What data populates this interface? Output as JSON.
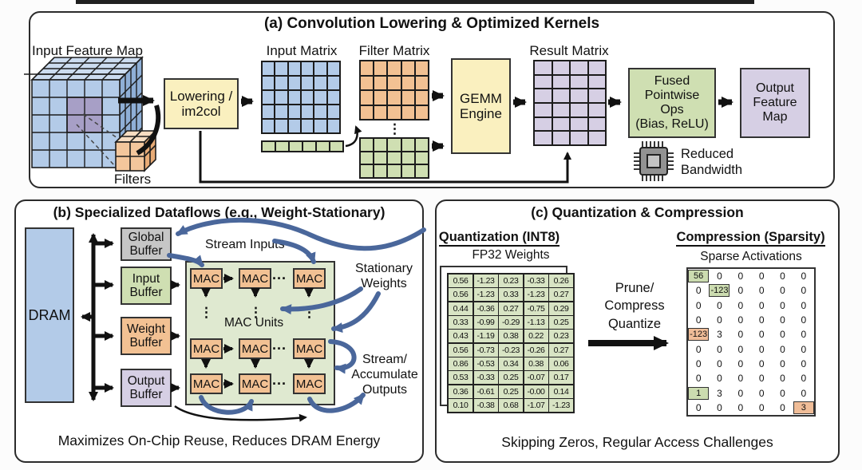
{
  "figure": {
    "colors": {
      "blue": "#b3cbe8",
      "green": "#cfdfb2",
      "orange": "#f2c193",
      "purple": "#d6cfe4",
      "yellow": "#faf0bf",
      "gray": "#c6c6c6",
      "arrow_blue": "#4a679b",
      "table_green": "#d8e4c4",
      "highlight_green": "#ccdcb0",
      "highlight_orange": "#f0bd98"
    },
    "panel_a": {
      "title": "(a) Convolution Lowering & Optimized Kernels",
      "input_feature_map": "Input Feature Map",
      "filters": "Filters",
      "lowering": "Lowering /\nim2col",
      "input_matrix": "Input Matrix",
      "filter_matrix": "Filter Matrix",
      "gemm": "GEMM\nEngine",
      "result_matrix": "Result Matrix",
      "fused_ops": "Fused\nPointwise\nOps\n(Bias, ReLU)",
      "output_feature_map": "Output\nFeature\nMap",
      "reduced_bandwidth": "Reduced\nBandwidth",
      "v_ellipsis": "⋮",
      "grids": {
        "input_matrix": {
          "cols": 6,
          "rows": 5,
          "fill": "#b3cbe8"
        },
        "input_row": {
          "cols": 6,
          "rows": 1,
          "fill": "#cfdfb2"
        },
        "filter_matrix": {
          "cols": 5,
          "rows": 4,
          "fill": "#f2c193"
        },
        "filter_matrix_green": {
          "cols": 5,
          "rows": 3,
          "fill": "#cfdfb2"
        },
        "result_matrix": {
          "cols": 4,
          "rows": 6,
          "fill": "#d6cfe4"
        }
      }
    },
    "panel_b": {
      "title": "(b) Specialized Dataflows (e.g., Weight-Stationary)",
      "dram": "DRAM",
      "buffers": [
        {
          "label": "Global\nBuffer",
          "color": "#c6c6c6"
        },
        {
          "label": "Input\nBuffer",
          "color": "#cfdfb2"
        },
        {
          "label": "Weight\nBuffer",
          "color": "#f2c193"
        },
        {
          "label": "Output\nBuffer",
          "color": "#d6cfe4"
        }
      ],
      "mac": "MAC",
      "mac_units": "MAC Units",
      "stream_inputs": "Stream Inputs",
      "stationary_weights": "Stationary\nWeights",
      "stream_accumulate": "Stream/\nAccumulate\nOutputs",
      "h_ellipsis": "···",
      "v_ellipsis": "⋮",
      "caption": "Maximizes On-Chip Reuse, Reduces DRAM Energy"
    },
    "panel_c": {
      "title": "(c) Quantization & Compression",
      "quant_heading": "Quantization (INT8)",
      "fp32_label": "FP32 Weights",
      "fp32_weights": [
        [
          "0.56",
          "-1.23",
          "0.23",
          "-0.33",
          "0.26"
        ],
        [
          "0.56",
          "-1.23",
          "0.33",
          "-1.23",
          "0.27"
        ],
        [
          "0.44",
          "-0.36",
          "0.27",
          "-0.75",
          "0.29"
        ],
        [
          "0.33",
          "-0.99",
          "-0.29",
          "-1.13",
          "0.25"
        ],
        [
          "0.43",
          "-1.19",
          "0.38",
          "0.22",
          "0.23"
        ],
        [
          "0.56",
          "-0.73",
          "-0.23",
          "-0.26",
          "0.27"
        ],
        [
          "0.86",
          "-0.53",
          "0.34",
          "0.38",
          "0.06"
        ],
        [
          "0.53",
          "-0.33",
          "0.25",
          "-0.07",
          "0.17"
        ],
        [
          "0.36",
          "-0.61",
          "0.25",
          "-0.00",
          "0.14"
        ],
        [
          "0.10",
          "-0.38",
          "0.68",
          "-1.07",
          "-1.23"
        ]
      ],
      "prune_text": "Prune/\nCompress\nQuantize",
      "comp_heading": "Compression (Sparsity)",
      "sparse_label": "Sparse Activations",
      "sparse_matrix": [
        [
          "56",
          "0",
          "0",
          "0",
          "0",
          "0"
        ],
        [
          "0",
          "-123",
          "0",
          "0",
          "0",
          "0"
        ],
        [
          "0",
          "0",
          "0",
          "0",
          "0",
          "0"
        ],
        [
          "0",
          "0",
          "0",
          "0",
          "0",
          "0"
        ],
        [
          "-123",
          "3",
          "0",
          "0",
          "0",
          "0"
        ],
        [
          "0",
          "0",
          "0",
          "0",
          "0",
          "0"
        ],
        [
          "0",
          "0",
          "0",
          "0",
          "0",
          "0"
        ],
        [
          "0",
          "0",
          "0",
          "0",
          "0",
          "0"
        ],
        [
          "1",
          "3",
          "0",
          "0",
          "0",
          "0"
        ],
        [
          "0",
          "0",
          "0",
          "0",
          "0",
          "3"
        ]
      ],
      "sparse_highlights": [
        {
          "row": 0,
          "col": 0,
          "color": "green"
        },
        {
          "row": 1,
          "col": 1,
          "color": "green"
        },
        {
          "row": 4,
          "col": 0,
          "color": "orange"
        },
        {
          "row": 8,
          "col": 0,
          "color": "green"
        },
        {
          "row": 9,
          "col": 5,
          "color": "orange"
        }
      ],
      "caption": "Skipping Zeros, Regular Access Challenges"
    }
  }
}
